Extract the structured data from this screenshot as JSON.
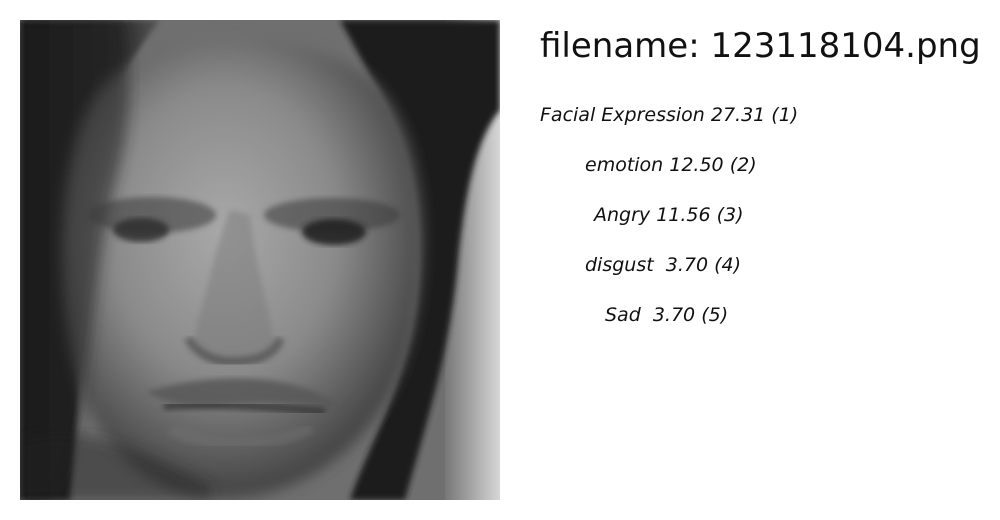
{
  "filename": "filename: 123118104.png",
  "labels": [
    {
      "text": "Facial Expression 27.31 (1)"
    },
    {
      "text": "emotion 12.50 (2)"
    },
    {
      "text": "Angry 11.56 (3)"
    },
    {
      "text": "disgust  3.70 (4)"
    },
    {
      "text": "Sad  3.70 (5)"
    }
  ],
  "photo": {
    "subject": "grayscale close-up face with frowning expression"
  }
}
